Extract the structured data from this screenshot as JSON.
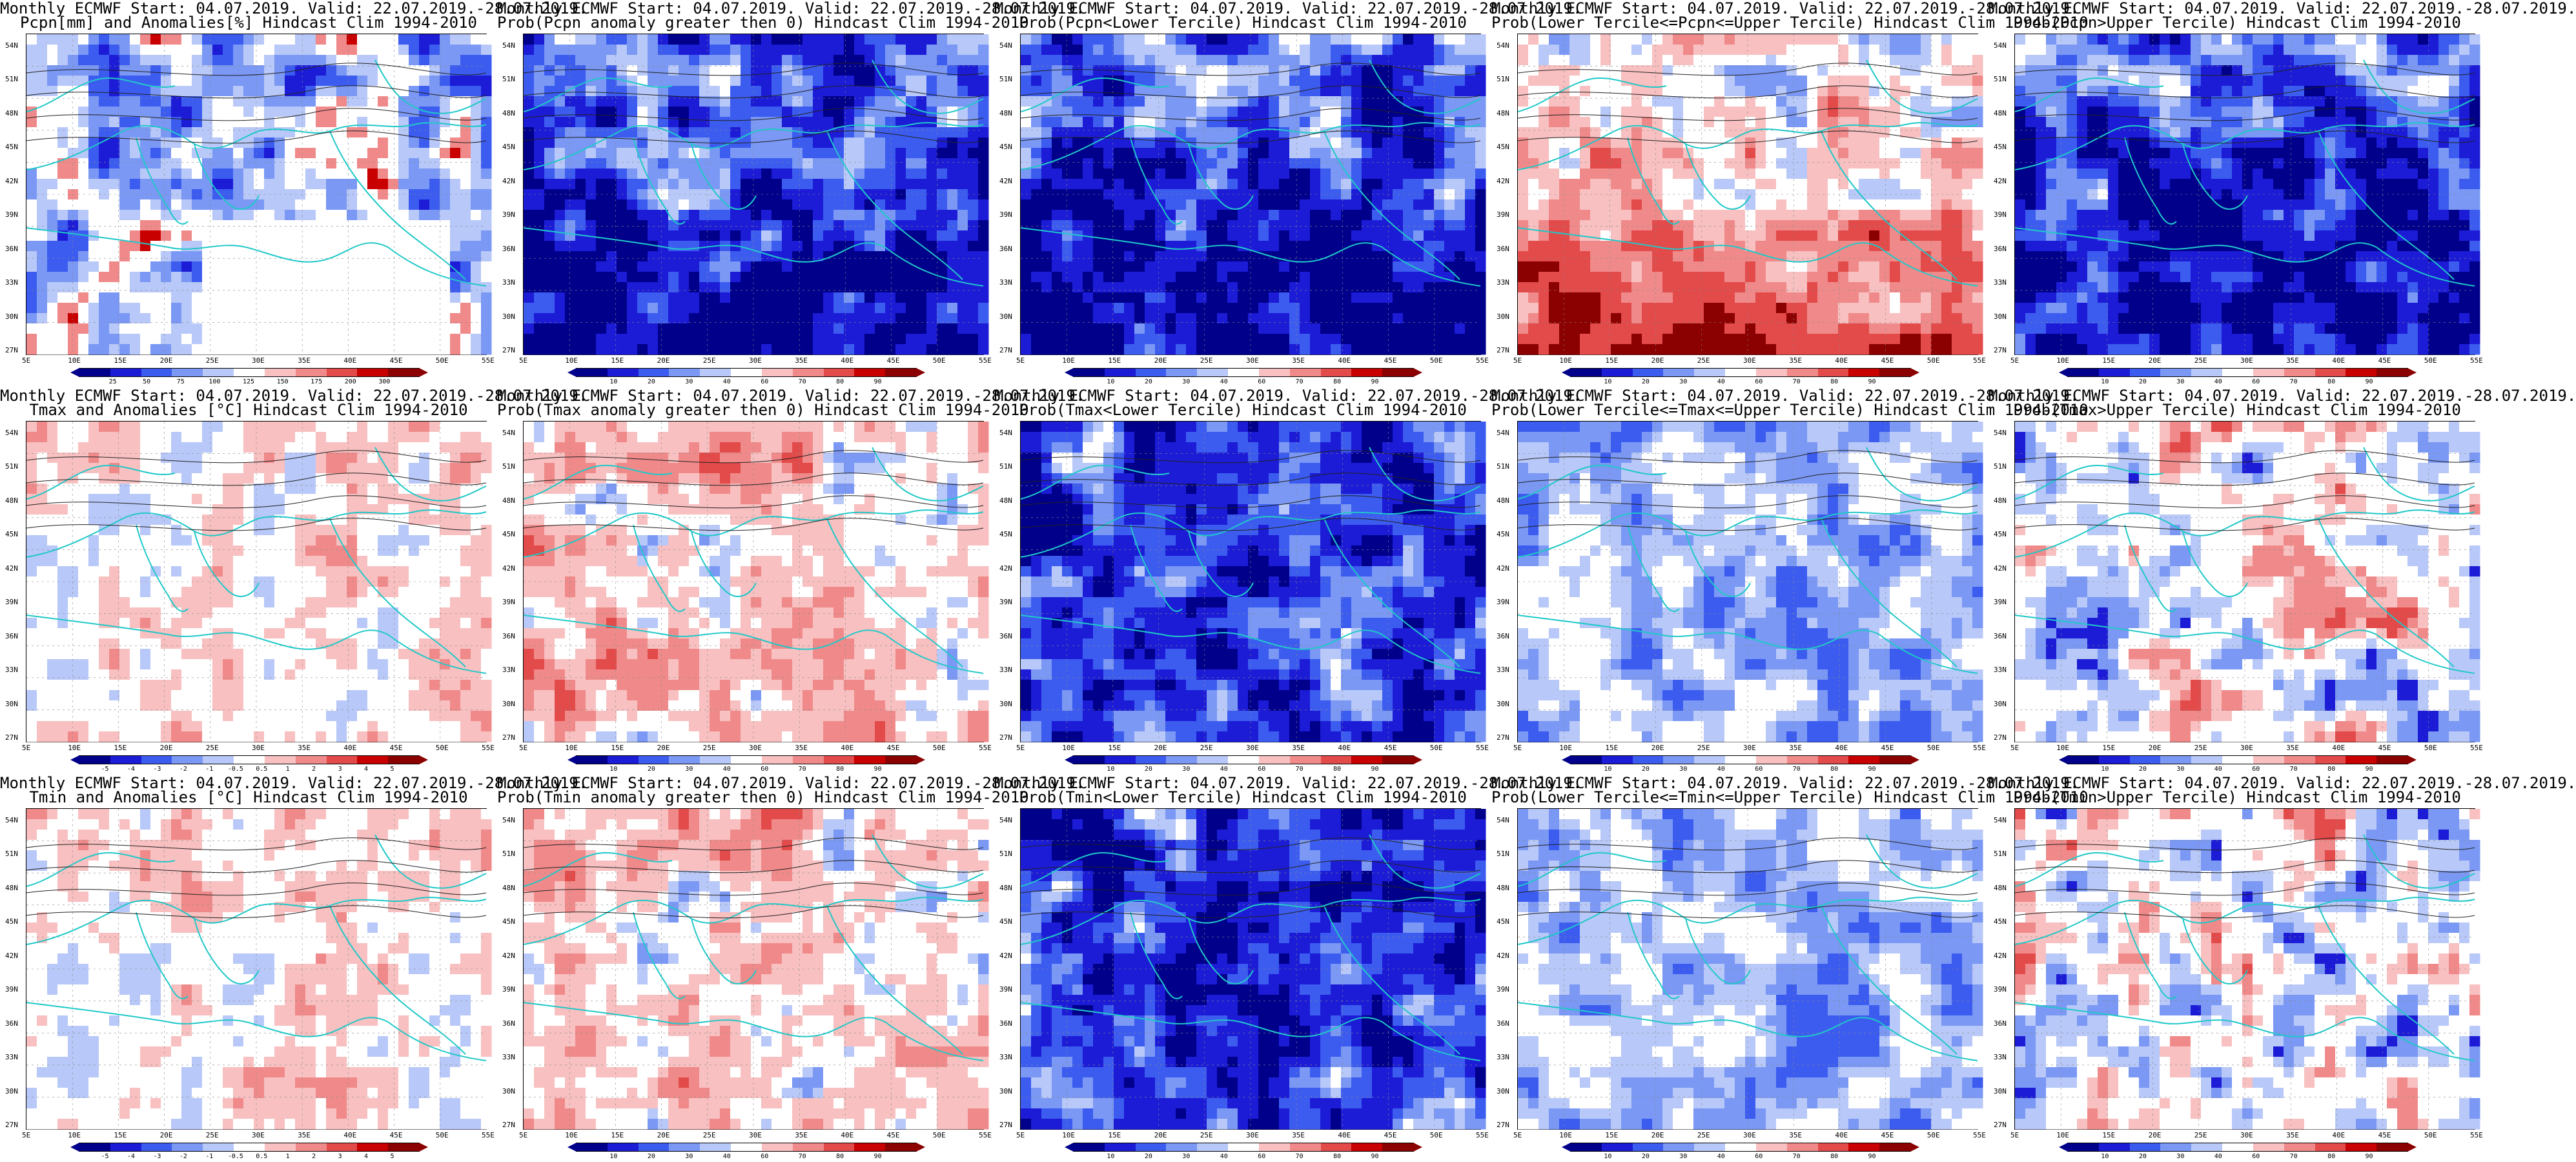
{
  "figure": {
    "panels": [
      {
        "line1": "Monthly ECMWF Start: 04.07.2019. Valid: 22.07.2019.-28.07.2019.",
        "line2": "Pcpn[mm] and Anomalies[%] Hindcast Clim 1994-2010",
        "scheme": "pcpn_anom",
        "colorbar_ticks": [
          "25",
          "50",
          "75",
          "100",
          "125",
          "150",
          "175",
          "200",
          "300"
        ]
      },
      {
        "line1": "Monthly ECMWF Start: 04.07.2019. Valid: 22.07.2019.-28.07.2019.",
        "line2": "Prob(Pcpn anomaly greater then 0) Hindcast Clim 1994-2010",
        "scheme": "blue_dominant",
        "colorbar_ticks": [
          "10",
          "20",
          "30",
          "40",
          "60",
          "70",
          "80",
          "90"
        ]
      },
      {
        "line1": "Monthly ECMWF Start: 04.07.2019. Valid: 22.07.2019.-28.07.2019.",
        "line2": "Prob(Pcpn<Lower Tercile) Hindcast Clim 1994-2010",
        "scheme": "blue_dominant",
        "colorbar_ticks": [
          "10",
          "20",
          "30",
          "40",
          "60",
          "70",
          "80",
          "90"
        ]
      },
      {
        "line1": "Monthly ECMWF Start: 04.07.2019. Valid: 22.07.2019.-28.07.2019.",
        "line2": "Prob(Lower Tercile<=Pcpn<=Upper Tercile) Hindcast Clim 1994-2010",
        "scheme": "red_south",
        "colorbar_ticks": [
          "10",
          "20",
          "30",
          "40",
          "60",
          "70",
          "80",
          "90"
        ]
      },
      {
        "line1": "Monthly ECMWF Start: 04.07.2019. Valid: 22.07.2019.-28.07.2019.",
        "line2": "Prob(Pcpn>Upper Tercile) Hindcast Clim 1994-2010",
        "scheme": "blue_dominant",
        "colorbar_ticks": [
          "10",
          "20",
          "30",
          "40",
          "60",
          "70",
          "80",
          "90"
        ]
      },
      {
        "line1": "Monthly ECMWF Start: 04.07.2019. Valid: 22.07.2019.-28.07.2019.",
        "line2": "Tmax and Anomalies [°C] Hindcast Clim 1994-2010",
        "scheme": "light_red",
        "colorbar_ticks": [
          "-5",
          "-4",
          "-3",
          "-2",
          "-1",
          "-0.5",
          "0.5",
          "1",
          "2",
          "3",
          "4",
          "5"
        ]
      },
      {
        "line1": "Monthly ECMWF Start: 04.07.2019. Valid: 22.07.2019.-28.07.2019.",
        "line2": "Prob(Tmax anomaly greater then 0) Hindcast Clim 1994-2010",
        "scheme": "red_mixed",
        "colorbar_ticks": [
          "10",
          "20",
          "30",
          "40",
          "60",
          "70",
          "80",
          "90"
        ]
      },
      {
        "line1": "Monthly ECMWF Start: 04.07.2019. Valid: 22.07.2019.-28.07.2019.",
        "line2": "Prob(Tmax<Lower Tercile) Hindcast Clim 1994-2010",
        "scheme": "deep_blue",
        "colorbar_ticks": [
          "10",
          "20",
          "30",
          "40",
          "60",
          "70",
          "80",
          "90"
        ]
      },
      {
        "line1": "Monthly ECMWF Start: 04.07.2019. Valid: 22.07.2019.-28.07.2019.",
        "line2": "Prob(Lower Tercile<=Tmax<=Upper Tercile) Hindcast Clim 1994-2010",
        "scheme": "light_blue",
        "colorbar_ticks": [
          "10",
          "20",
          "30",
          "40",
          "60",
          "70",
          "80",
          "90"
        ]
      },
      {
        "line1": "Monthly ECMWF Start: 04.07.2019. Valid: 22.07.2019.-28.07.2019.",
        "line2": "Prob(Tmax>Upper Tercile) Hindcast Clim 1994-2010",
        "scheme": "mixed_blue_red",
        "colorbar_ticks": [
          "10",
          "20",
          "30",
          "40",
          "60",
          "70",
          "80",
          "90"
        ]
      },
      {
        "line1": "Monthly ECMWF Start: 04.07.2019. Valid: 22.07.2019.-28.07.2019.",
        "line2": "Tmin and Anomalies [°C] Hindcast Clim 1994-2010",
        "scheme": "light_red",
        "colorbar_ticks": [
          "-5",
          "-4",
          "-3",
          "-2",
          "-1",
          "-0.5",
          "0.5",
          "1",
          "2",
          "3",
          "4",
          "5"
        ]
      },
      {
        "line1": "Monthly ECMWF Start: 04.07.2019. Valid: 22.07.2019.-28.07.2019.",
        "line2": "Prob(Tmin anomaly greater then 0) Hindcast Clim 1994-2010",
        "scheme": "red_mixed",
        "colorbar_ticks": [
          "10",
          "20",
          "30",
          "40",
          "60",
          "70",
          "80",
          "90"
        ]
      },
      {
        "line1": "Monthly ECMWF Start: 04.07.2019. Valid: 22.07.2019.-28.07.2019.",
        "line2": "Prob(Tmin<Lower Tercile) Hindcast Clim 1994-2010",
        "scheme": "deep_blue",
        "colorbar_ticks": [
          "10",
          "20",
          "30",
          "40",
          "60",
          "70",
          "80",
          "90"
        ]
      },
      {
        "line1": "Monthly ECMWF Start: 04.07.2019. Valid: 22.07.2019.-28.07.2019.",
        "line2": "Prob(Lower Tercile<=Tmin<=Upper Tercile) Hindcast Clim 1994-2010",
        "scheme": "light_blue",
        "colorbar_ticks": [
          "10",
          "20",
          "30",
          "40",
          "60",
          "70",
          "80",
          "90"
        ]
      },
      {
        "line1": "Monthly ECMWF Start: 04.07.2019. Valid: 22.07.2019.-28.07.2019.",
        "line2": "Prob(Tmin>Upper Tercile) Hindcast Clim 1994-2010",
        "scheme": "mixed_blue_red",
        "colorbar_ticks": [
          "10",
          "20",
          "30",
          "40",
          "60",
          "70",
          "80",
          "90"
        ]
      }
    ],
    "lat_labels": [
      "54N",
      "51N",
      "48N",
      "45N",
      "42N",
      "39N",
      "36N",
      "33N",
      "30N",
      "27N"
    ],
    "lon_labels": [
      "5E",
      "10E",
      "15E",
      "20E",
      "25E",
      "30E",
      "35E",
      "40E",
      "45E",
      "50E",
      "55E"
    ],
    "palette": [
      "#00008b",
      "#1c1cd6",
      "#3c5cf0",
      "#7a98f4",
      "#b8c8f8",
      "#ffffff",
      "#f8c0c0",
      "#f08a8a",
      "#e34a4a",
      "#c80000",
      "#8b0000"
    ],
    "coast_color": "#20c8c8"
  }
}
